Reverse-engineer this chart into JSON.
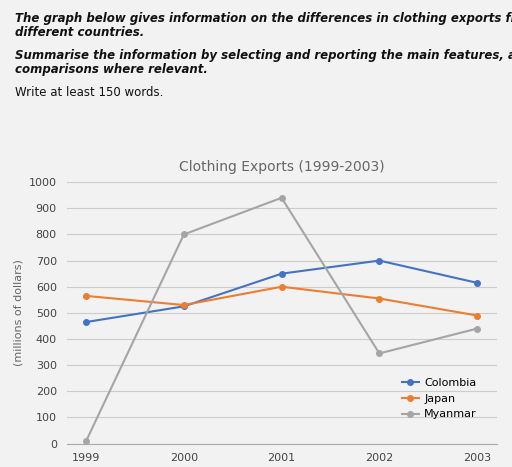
{
  "title": "Clothing Exports (1999-2003)",
  "ylabel": "(millions of dollars)",
  "years": [
    1999,
    2000,
    2001,
    2002,
    2003
  ],
  "colombia": [
    465,
    525,
    650,
    700,
    615
  ],
  "japan": [
    565,
    530,
    600,
    555,
    490
  ],
  "myanmar": [
    10,
    800,
    940,
    345,
    440
  ],
  "colombia_color": "#4472C4",
  "japan_color": "#ED7D31",
  "myanmar_color": "#A5A5A5",
  "ylim_min": 0,
  "ylim_max": 1000,
  "yticks": [
    0,
    100,
    200,
    300,
    400,
    500,
    600,
    700,
    800,
    900,
    1000
  ],
  "background_color": "#F2F2F2",
  "plot_bg_color": "#F2F2F2",
  "grid_color": "#CCCCCC",
  "title_fontsize": 10,
  "label_fontsize": 8,
  "tick_fontsize": 8,
  "legend_fontsize": 8,
  "header1_line1": "The graph below gives information on the differences in clothing exports from three",
  "header1_line2": "different countries.",
  "header2_line1": "Summarise the information by selecting and reporting the main features, and make",
  "header2_line2": "comparisons where relevant.",
  "header3": "Write at least 150 words."
}
